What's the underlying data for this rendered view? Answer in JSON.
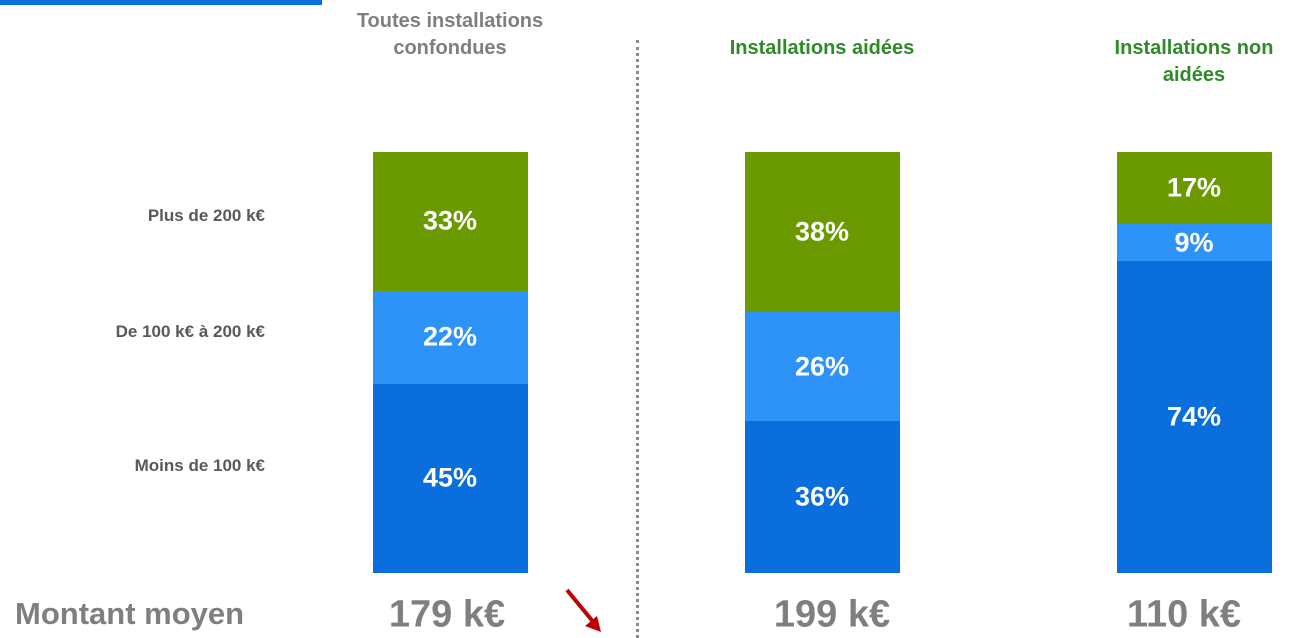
{
  "chart_data": {
    "type": "stacked_bar",
    "categories": [
      "Toutes installations confondues",
      "Installations aidées",
      "Installations non aidées"
    ],
    "category_colors": [
      "#7f7f7f",
      "#2f8a2a",
      "#2f8a2a"
    ],
    "series": [
      {
        "name": "Moins de 100 k€",
        "color": "#0a6fdc",
        "values": [
          45,
          36,
          74
        ],
        "value_labels": [
          "45%",
          "36%",
          "74%"
        ]
      },
      {
        "name": "De 100 k€ à 200 k€",
        "color": "#2e93f8",
        "values": [
          22,
          26,
          9
        ],
        "value_labels": [
          "22%",
          "26%",
          "9%"
        ]
      },
      {
        "name": "Plus de 200 k€",
        "color": "#6a9a00",
        "values": [
          33,
          38,
          17
        ],
        "value_labels": [
          "33%",
          "38%",
          "17%"
        ]
      }
    ],
    "ylim": [
      0,
      100
    ],
    "averages": {
      "label": "Montant moyen",
      "values": [
        179,
        199,
        110
      ],
      "value_labels": [
        "179 k€",
        "199 k€",
        "110 k€"
      ]
    }
  }
}
